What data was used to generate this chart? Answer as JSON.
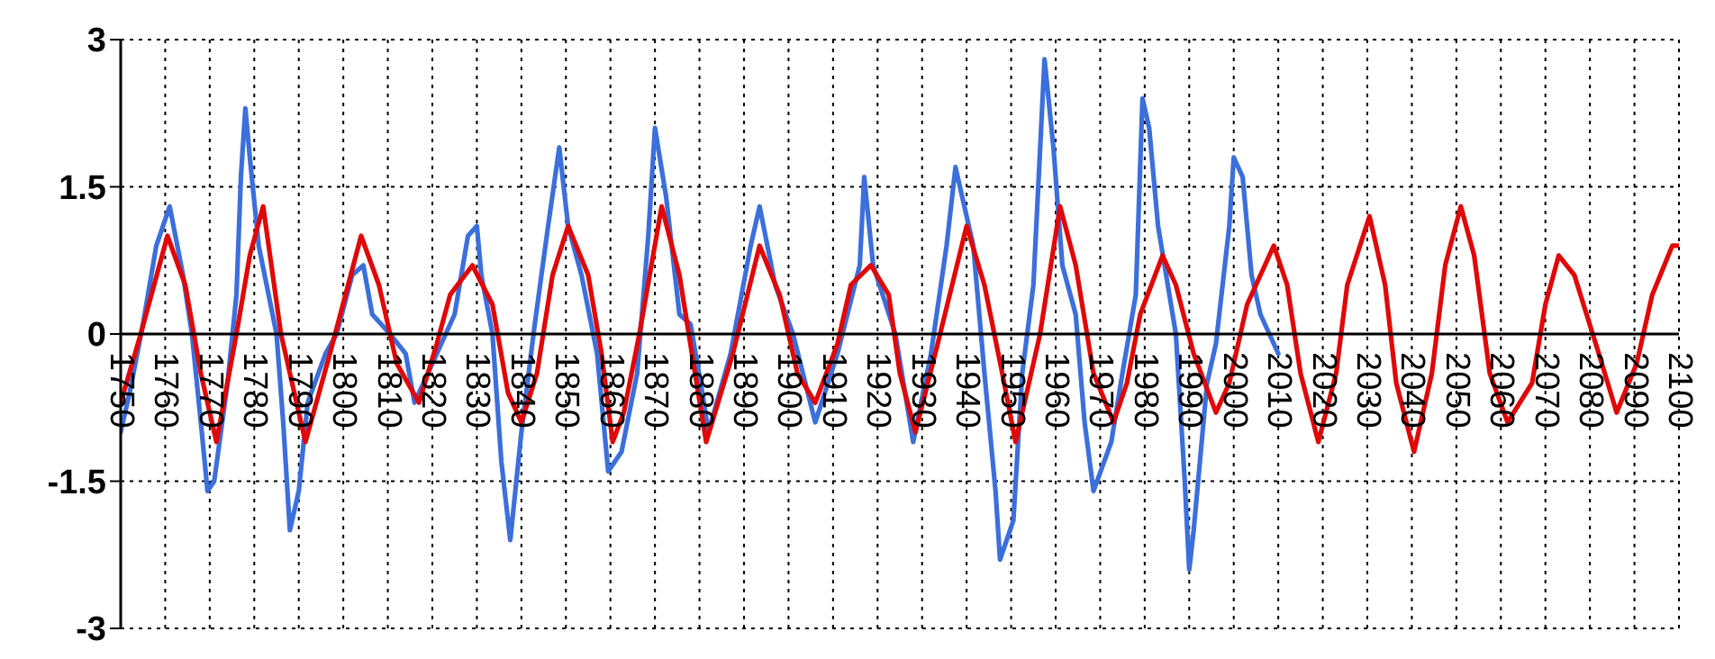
{
  "chart_data": {
    "type": "line",
    "xlim": [
      1750,
      2100
    ],
    "xticks": [
      1750,
      1760,
      1770,
      1780,
      1790,
      1800,
      1810,
      1820,
      1830,
      1840,
      1850,
      1860,
      1870,
      1880,
      1890,
      1900,
      1910,
      1920,
      1930,
      1940,
      1950,
      1960,
      1970,
      1980,
      1990,
      2000,
      2010,
      2020,
      2030,
      2040,
      2050,
      2060,
      2070,
      2080,
      2090,
      2100
    ],
    "ylim": [
      -3,
      3
    ],
    "yticks": [
      -3,
      -1.5,
      0,
      1.5,
      3
    ],
    "grid": true,
    "series": [
      {
        "color": "#3b6fdc",
        "x": [
          1750,
          1752,
          1755,
          1758,
          1761,
          1764,
          1766,
          1768,
          1769.5,
          1771,
          1774,
          1776,
          1777,
          1778,
          1779,
          1781,
          1785,
          1786.5,
          1788,
          1790,
          1792,
          1796,
          1798.5,
          1802,
          1804.5,
          1806.5,
          1810.5,
          1814,
          1816,
          1819,
          1823,
          1825,
          1828,
          1830,
          1831,
          1833.5,
          1835.5,
          1837.5,
          1840,
          1843,
          1846,
          1848.5,
          1850.5,
          1853.5,
          1857,
          1859.5,
          1862.5,
          1866,
          1868.5,
          1870,
          1872.5,
          1875.5,
          1878,
          1881,
          1882,
          1887,
          1891.5,
          1893.5,
          1897,
          1901,
          1906,
          1911,
          1916,
          1917,
          1919,
          1924,
          1928,
          1932,
          1935.5,
          1937.5,
          1941.5,
          1944,
          1946.5,
          1947.5,
          1950.5,
          1952.5,
          1955,
          1957.5,
          1959.5,
          1961.5,
          1964.5,
          1966.5,
          1968.5,
          1972.5,
          1975,
          1978,
          1979.5,
          1981,
          1983,
          1987,
          1989,
          1990,
          1991,
          1994,
          1996,
          1999,
          2000,
          2002,
          2004,
          2006,
          2010
        ],
        "values": [
          -1.0,
          -0.6,
          0.1,
          0.9,
          1.3,
          0.6,
          0,
          -0.9,
          -1.6,
          -1.5,
          -0.5,
          0.4,
          1.6,
          2.3,
          1.8,
          0.9,
          0,
          -0.9,
          -2.0,
          -1.6,
          -0.7,
          -0.2,
          0,
          0.6,
          0.7,
          0.2,
          0,
          -0.2,
          -0.7,
          -0.4,
          0,
          0.2,
          1.0,
          1.1,
          0.6,
          0,
          -1.3,
          -2.1,
          -1.0,
          0.1,
          1.1,
          1.9,
          1.1,
          0.6,
          -0.2,
          -1.4,
          -1.2,
          -0.4,
          1.0,
          2.1,
          1.4,
          0.2,
          0.1,
          -0.7,
          -1.0,
          -0.2,
          0.9,
          1.3,
          0.5,
          0,
          -0.9,
          -0.2,
          0.7,
          1.6,
          0.7,
          0,
          -1.1,
          -0.2,
          0.9,
          1.7,
          0.9,
          -0.4,
          -1.6,
          -2.3,
          -1.9,
          -0.4,
          0.5,
          2.8,
          1.9,
          0.7,
          0.2,
          -0.9,
          -1.6,
          -1.1,
          -0.4,
          0.4,
          2.4,
          2.1,
          1.1,
          0,
          -1.5,
          -2.4,
          -2.0,
          -0.5,
          -0.1,
          1.1,
          1.8,
          1.6,
          0.6,
          0.2,
          -0.2
        ]
      },
      {
        "color": "#e00808",
        "x": [
          1750,
          1754.5,
          1760.5,
          1764.5,
          1768,
          1771.5,
          1776,
          1779,
          1782,
          1786,
          1791.5,
          1797,
          1804,
          1808,
          1812,
          1817,
          1821,
          1824,
          1829,
          1833.5,
          1837,
          1840,
          1843.5,
          1847,
          1850.5,
          1855,
          1858,
          1860.5,
          1863,
          1866.5,
          1871.5,
          1875.5,
          1879,
          1881.5,
          1887.5,
          1893.5,
          1898,
          1902,
          1906,
          1911,
          1914,
          1918.5,
          1922.5,
          1925,
          1928.5,
          1933.5,
          1940,
          1944,
          1948,
          1951,
          1956.5,
          1961,
          1964.5,
          1968.5,
          1973,
          1976,
          1979,
          1984,
          1987,
          1991,
          1996,
          1999,
          2003,
          2009,
          2012,
          2015,
          2019,
          2023,
          2025.5,
          2030.5,
          2034,
          2036.5,
          2040.5,
          2044.5,
          2047.5,
          2051,
          2054,
          2057.5,
          2061.5,
          2067,
          2070,
          2073,
          2076.5,
          2082,
          2086,
          2090.5,
          2094,
          2098.5,
          2100
        ],
        "values": [
          -0.7,
          0,
          1.0,
          0.5,
          -0.4,
          -1.1,
          0,
          0.8,
          1.3,
          0,
          -1.1,
          -0.2,
          1.0,
          0.5,
          -0.3,
          -0.7,
          -0.1,
          0.4,
          0.7,
          0.3,
          -0.6,
          -0.9,
          -0.4,
          0.6,
          1.1,
          0.6,
          -0.2,
          -1.1,
          -0.8,
          0,
          1.3,
          0.6,
          -0.4,
          -1.1,
          -0.2,
          0.9,
          0.4,
          -0.4,
          -0.7,
          -0.1,
          0.5,
          0.7,
          0.4,
          -0.4,
          -1.0,
          -0.1,
          1.1,
          0.5,
          -0.4,
          -1.1,
          0,
          1.3,
          0.7,
          -0.4,
          -0.9,
          -0.5,
          0.2,
          0.8,
          0.5,
          -0.2,
          -0.8,
          -0.5,
          0.3,
          0.9,
          0.5,
          -0.4,
          -1.1,
          -0.4,
          0.5,
          1.2,
          0.5,
          -0.5,
          -1.2,
          -0.4,
          0.7,
          1.3,
          0.8,
          -0.4,
          -0.9,
          -0.5,
          0.3,
          0.8,
          0.6,
          -0.2,
          -0.8,
          -0.3,
          0.4,
          0.9,
          0.9
        ]
      }
    ]
  }
}
